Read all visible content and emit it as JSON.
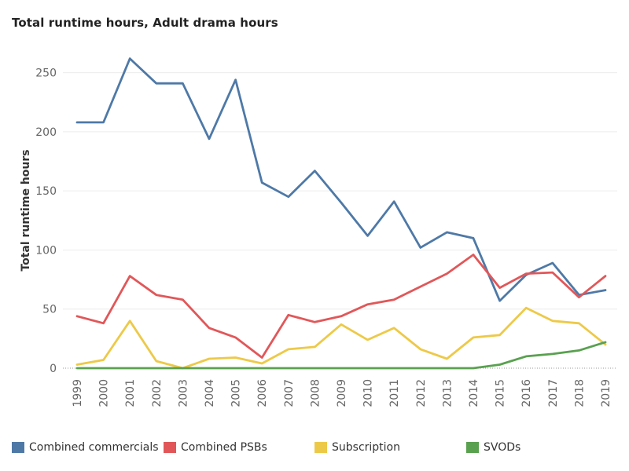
{
  "chart_data": {
    "type": "line",
    "title": "Total runtime hours,  Adult drama hours",
    "ylabel": "Total runtime hours",
    "xlabel": "",
    "ylim": [
      0,
      275
    ],
    "yticks": [
      0,
      50,
      100,
      150,
      200,
      250
    ],
    "categories": [
      "1999",
      "2000",
      "2001",
      "2002",
      "2003",
      "2004",
      "2005",
      "2006",
      "2007",
      "2008",
      "2009",
      "2010",
      "2011",
      "2012",
      "2013",
      "2014",
      "2015",
      "2016",
      "2017",
      "2018",
      "2019"
    ],
    "grid": true,
    "legend_position": "bottom",
    "series": [
      {
        "name": "Combined commercials",
        "color": "#4e79a7",
        "values": [
          208,
          208,
          262,
          241,
          241,
          194,
          244,
          157,
          145,
          167,
          140,
          112,
          141,
          102,
          115,
          110,
          57,
          79,
          89,
          62,
          66
        ]
      },
      {
        "name": "Combined PSBs",
        "color": "#e15759",
        "values": [
          44,
          38,
          78,
          62,
          58,
          34,
          26,
          9,
          45,
          39,
          44,
          54,
          58,
          69,
          80,
          96,
          68,
          80,
          81,
          60,
          78
        ]
      },
      {
        "name": "Subscription",
        "color": "#edc948",
        "values": [
          3,
          7,
          40,
          6,
          0,
          8,
          9,
          4,
          16,
          18,
          37,
          24,
          34,
          16,
          8,
          26,
          28,
          51,
          40,
          38,
          20
        ]
      },
      {
        "name": "SVODs",
        "color": "#59a14f",
        "values": [
          0,
          0,
          0,
          0,
          0,
          0,
          0,
          0,
          0,
          0,
          0,
          0,
          0,
          0,
          0,
          0,
          3,
          10,
          12,
          15,
          22
        ]
      }
    ]
  }
}
